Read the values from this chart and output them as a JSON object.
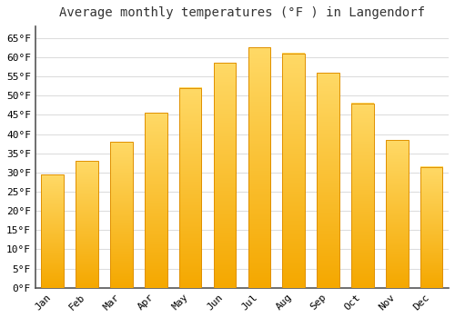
{
  "title": "Average monthly temperatures (°F ) in Langendorf",
  "months": [
    "Jan",
    "Feb",
    "Mar",
    "Apr",
    "May",
    "Jun",
    "Jul",
    "Aug",
    "Sep",
    "Oct",
    "Nov",
    "Dec"
  ],
  "values": [
    29.5,
    33.0,
    38.0,
    45.5,
    52.0,
    58.5,
    62.5,
    61.0,
    56.0,
    48.0,
    38.5,
    31.5
  ],
  "bar_color_center": "#FFD966",
  "bar_color_edge": "#F5A800",
  "background_color": "#FFFFFF",
  "grid_color": "#DDDDDD",
  "title_fontsize": 10,
  "tick_fontsize": 8,
  "ylim": [
    0,
    68
  ],
  "yticks": [
    0,
    5,
    10,
    15,
    20,
    25,
    30,
    35,
    40,
    45,
    50,
    55,
    60,
    65
  ]
}
